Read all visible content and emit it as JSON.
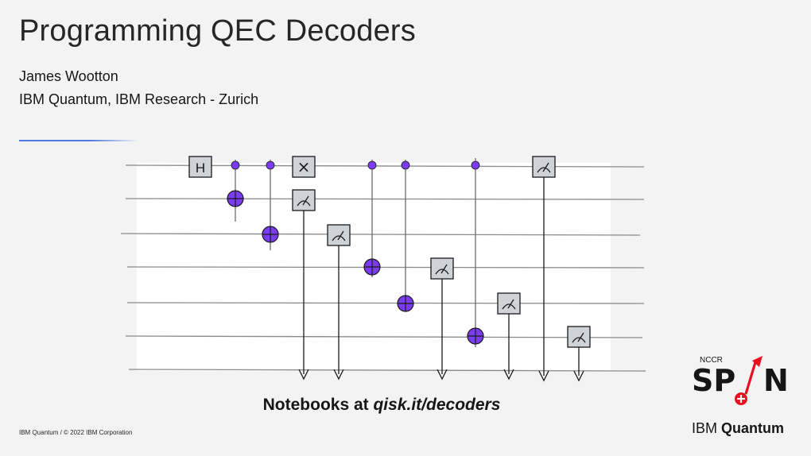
{
  "slide": {
    "title": "Programming QEC Decoders",
    "author": "James Wootton",
    "affiliation": "IBM Quantum, IBM Research - Zurich",
    "notebooks_prefix": "Notebooks at ",
    "notebooks_url": "qisk.it/decoders",
    "footer": "IBM Quantum / © 2022 IBM Corporation"
  },
  "logo": {
    "nccr": "NCCR",
    "spin_left": "SP",
    "spin_right": "N",
    "accent_color": "#e8101f"
  },
  "brand": {
    "ibm": "IBM",
    "quantum": "Quantum"
  },
  "circuit": {
    "num_qubits": 6,
    "gate_labels": {
      "h": "H",
      "x": "×"
    },
    "colors": {
      "control": "#7a3cf0",
      "gate_fill": "#cfd2d6",
      "wire": "#8a8a8a"
    }
  }
}
